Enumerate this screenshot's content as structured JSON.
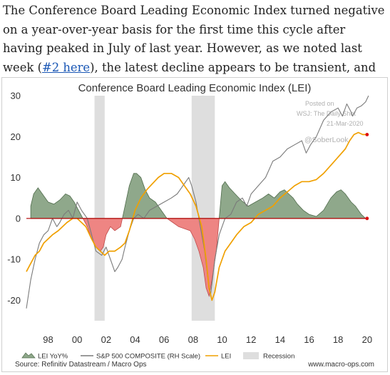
{
  "intro": {
    "part1": "The Conference Board Leading Economic Index turned negative on a year-over-year basis for the first time this cycle after having peaked in July of last year. However, as we noted last week (",
    "link": "#2 here",
    "part2": "), the latest decline appears to be transient, and we should see a rebound in this index."
  },
  "watermark": {
    "line1": "Posted on",
    "line2": "WSJ: The Daily Shot",
    "line3": "21-Mar-2020",
    "handle": "@SoberLook"
  },
  "footer": {
    "source": "Source: Refinitiv Datastream / Macro Ops",
    "site": "www.macro-ops.com"
  },
  "chart_data": {
    "type": "line",
    "title": "Conference Board Leading Economic Index (LEI)",
    "x_tick_labels": [
      "98",
      "00",
      "02",
      "04",
      "06",
      "08",
      "10",
      "12",
      "14",
      "16",
      "18",
      "20"
    ],
    "x_range": [
      1996.5,
      2020.5
    ],
    "y_ticks": [
      30,
      20,
      10,
      0,
      -10,
      -20
    ],
    "ylim": [
      -25,
      30
    ],
    "zero_line_color": "#b00000",
    "recessions": [
      [
        2001.2,
        2001.9
      ],
      [
        2007.9,
        2009.5
      ]
    ],
    "legend": [
      {
        "label": "LEI YoY%",
        "kind": "area",
        "color": "#8fa88b"
      },
      {
        "label": "S&P 500 COMPOSITE (RH Scale)",
        "kind": "line",
        "color": "#7a7a7a"
      },
      {
        "label": "LEI",
        "kind": "line",
        "color": "#f0a000"
      },
      {
        "label": "Recession",
        "kind": "box",
        "color": "#dedede"
      }
    ],
    "series": [
      {
        "name": "LEI YoY%",
        "color_positive": "#8fa88b",
        "color_negative": "#ee8583",
        "x": [
          1996.8,
          1997.0,
          1997.3,
          1997.6,
          1998.0,
          1998.4,
          1998.8,
          1999.2,
          1999.5,
          1999.8,
          2000.1,
          2000.4,
          2000.7,
          2001.0,
          2001.3,
          2001.6,
          2001.8,
          2002.0,
          2002.3,
          2002.6,
          2003.0,
          2003.3,
          2003.6,
          2003.9,
          2004.1,
          2004.4,
          2004.7,
          2005.0,
          2005.4,
          2005.8,
          2006.2,
          2006.6,
          2007.0,
          2007.4,
          2007.8,
          2008.1,
          2008.4,
          2008.7,
          2008.9,
          2009.1,
          2009.3,
          2009.6,
          2009.8,
          2010.0,
          2010.2,
          2010.5,
          2010.9,
          2011.3,
          2011.8,
          2012.3,
          2012.8,
          2013.2,
          2013.6,
          2014.0,
          2014.3,
          2014.6,
          2014.9,
          2015.2,
          2015.6,
          2016.0,
          2016.5,
          2017.0,
          2017.5,
          2017.9,
          2018.2,
          2018.5,
          2018.9,
          2019.2,
          2019.6,
          2019.9
        ],
        "values": [
          3,
          6,
          7.5,
          6,
          4,
          3.5,
          4.5,
          6,
          5.5,
          4,
          2,
          0,
          -2,
          -5,
          -7,
          -8,
          -7,
          -4,
          -2,
          -3,
          -2,
          3,
          8,
          11,
          11,
          10,
          7,
          5,
          4,
          2,
          0,
          -1,
          -2,
          -2.5,
          -3,
          -5,
          -8,
          -12,
          -17,
          -19,
          -15,
          -8,
          0,
          8,
          9,
          7.5,
          6,
          4.5,
          3,
          4,
          5,
          6,
          5,
          6.5,
          7,
          6,
          5,
          3.5,
          2,
          1,
          0.5,
          2,
          5,
          6.5,
          7,
          6,
          4,
          3,
          1,
          0
        ]
      },
      {
        "name": "S&P 500 COMPOSITE (RH Scale)",
        "color": "#7a7a7a",
        "x": [
          1996.5,
          1996.8,
          1997.1,
          1997.4,
          1997.7,
          1998.0,
          1998.3,
          1998.6,
          1998.8,
          1999.1,
          1999.4,
          1999.7,
          2000.0,
          2000.3,
          2000.7,
          2001.0,
          2001.3,
          2001.7,
          2002.0,
          2002.3,
          2002.6,
          2002.8,
          2003.1,
          2003.3,
          2003.6,
          2003.9,
          2004.2,
          2004.6,
          2005.0,
          2005.5,
          2006.0,
          2006.5,
          2006.9,
          2007.3,
          2007.7,
          2007.9,
          2008.2,
          2008.5,
          2008.8,
          2009.0,
          2009.2,
          2009.5,
          2009.8,
          2010.2,
          2010.6,
          2011.0,
          2011.4,
          2011.7,
          2012.0,
          2012.5,
          2013.0,
          2013.5,
          2014.0,
          2014.5,
          2015.0,
          2015.5,
          2015.8,
          2016.1,
          2016.5,
          2017.0,
          2017.5,
          2018.0,
          2018.3,
          2018.6,
          2018.9,
          2019.0,
          2019.3,
          2019.6,
          2019.9,
          2020.1
        ],
        "values": [
          -22,
          -15,
          -10,
          -6,
          -4,
          -3,
          0,
          -2,
          -1,
          1,
          2,
          0,
          4,
          2,
          0,
          -4,
          -8,
          -9,
          -7,
          -10,
          -13,
          -12,
          -10,
          -7,
          -3,
          0,
          1,
          0,
          2,
          3,
          4,
          5,
          6,
          8,
          10,
          8,
          4,
          -2,
          -8,
          -14,
          -19,
          -10,
          -4,
          0,
          1,
          4,
          5,
          3,
          6,
          8,
          10,
          14,
          15,
          17,
          18,
          19,
          16,
          18,
          20,
          24,
          26,
          27,
          25,
          28,
          26,
          25,
          27,
          27.5,
          28.5,
          30
        ]
      },
      {
        "name": "LEI",
        "color": "#f0a000",
        "x": [
          1996.5,
          1996.8,
          1997.1,
          1997.4,
          1997.7,
          1998.0,
          1998.3,
          1998.7,
          1999.0,
          1999.3,
          1999.7,
          2000.0,
          2000.3,
          2000.6,
          2001.0,
          2001.3,
          2001.6,
          2001.9,
          2002.2,
          2002.6,
          2003.0,
          2003.3,
          2003.6,
          2004.0,
          2004.4,
          2004.8,
          2005.2,
          2005.6,
          2006.0,
          2006.5,
          2007.0,
          2007.4,
          2007.8,
          2008.2,
          2008.6,
          2008.9,
          2009.1,
          2009.3,
          2009.5,
          2009.8,
          2010.2,
          2010.6,
          2011.0,
          2011.5,
          2012.0,
          2012.5,
          2013.0,
          2013.5,
          2014.0,
          2014.5,
          2015.0,
          2015.5,
          2016.0,
          2016.5,
          2017.0,
          2017.5,
          2018.0,
          2018.5,
          2018.8,
          2019.1,
          2019.4,
          2019.7,
          2020.0
        ],
        "values": [
          -13,
          -11,
          -9,
          -8,
          -6,
          -5,
          -4,
          -3,
          -2,
          -1,
          0,
          0,
          -1,
          -2,
          -5,
          -7,
          -8,
          -9,
          -8,
          -8,
          -7,
          -6,
          -3,
          2,
          5,
          7,
          8.5,
          10,
          11,
          11,
          10,
          8,
          6,
          3,
          -2,
          -10,
          -17,
          -20,
          -18,
          -12,
          -8,
          -6,
          -4,
          -2,
          -1,
          1,
          2,
          3,
          5,
          6.5,
          8,
          9,
          9,
          9.5,
          11,
          13,
          15,
          17,
          19,
          20.5,
          21,
          20.5,
          20.5
        ]
      }
    ]
  }
}
